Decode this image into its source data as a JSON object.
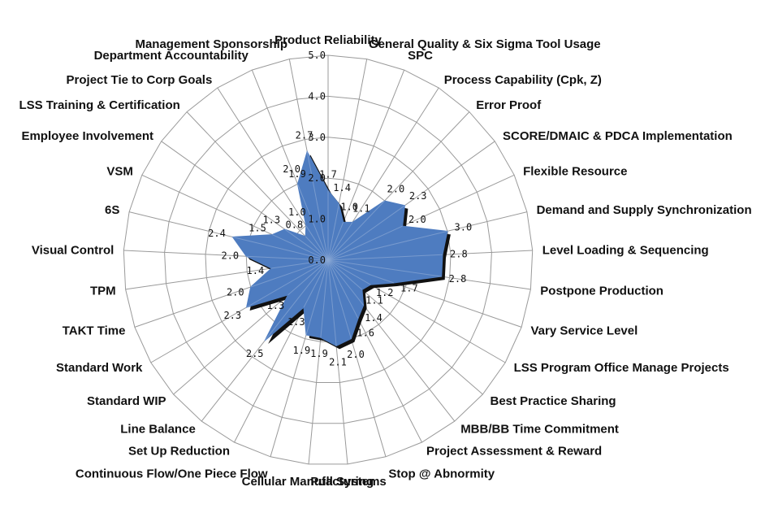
{
  "chart_data": {
    "type": "radar",
    "title": "",
    "rlim": [
      0,
      5
    ],
    "ticks": [
      0,
      1,
      2,
      3,
      4,
      5
    ],
    "tick_labels": [
      "0.0",
      "1.0",
      "2.0",
      "3.0",
      "4.0",
      "5.0"
    ],
    "series_color": "#4e7cc0",
    "shadow_color": "#111111",
    "grid_color": "#9a9a9a",
    "categories": [
      "Product Reliability",
      "General Quality & Six Sigma Tool Usage",
      "SPC",
      "Process Capability (Cpk, Z)",
      "Error Proof",
      "SCORE/DMAIC & PDCA Implementation",
      "Flexible Resource",
      "Demand and Supply Synchronization",
      "Level Loading & Sequencing",
      "Postpone Production",
      "Vary Service Level",
      "LSS Program Office Manage Projects",
      "Best Practice Sharing",
      "MBB/BB Time Commitment",
      "Project Assessment  & Reward",
      "Stop @ Abnormity",
      "Pull Systems",
      "Cellular Manufacturing",
      "Continuous Flow/One Piece Flow",
      "Set Up Reduction",
      "Line Balance",
      "Standard WIP",
      "Standard Work",
      "TAKT Time",
      "TPM",
      "Visual Control",
      "6S",
      "VSM",
      "Employee Involvement",
      "LSS Training & Certification",
      "Project Tie to Corp Goals",
      "Department Accountability",
      "Management Sponsorship"
    ],
    "values": [
      1.7,
      1.4,
      1.0,
      1.1,
      2.0,
      2.3,
      2.0,
      3.0,
      2.8,
      2.8,
      1.7,
      1.2,
      1.1,
      1.4,
      1.6,
      2.0,
      2.1,
      1.9,
      1.9,
      1.3,
      2.5,
      1.3,
      2.3,
      2.0,
      1.4,
      2.0,
      2.4,
      1.5,
      1.3,
      0.8,
      1.0,
      2.0,
      2.7
    ],
    "value_labels": [
      "1.7",
      "1.4",
      "1.0",
      "1.1",
      "2.0",
      "2.3",
      "2.0",
      "3.0",
      "2.8",
      "2.8",
      "1.7",
      "1.2",
      "1.1",
      "1.4",
      "1.6",
      "2.0",
      "2.1",
      "1.9",
      "1.9",
      "1.3",
      "2.5",
      "1.3",
      "2.3",
      "2.0",
      "1.4",
      "2.0",
      "2.4",
      "1.5",
      "1.3",
      "0.8",
      "1.0",
      "2.0",
      "2.7"
    ],
    "extra_labels": [
      "1.9"
    ]
  }
}
